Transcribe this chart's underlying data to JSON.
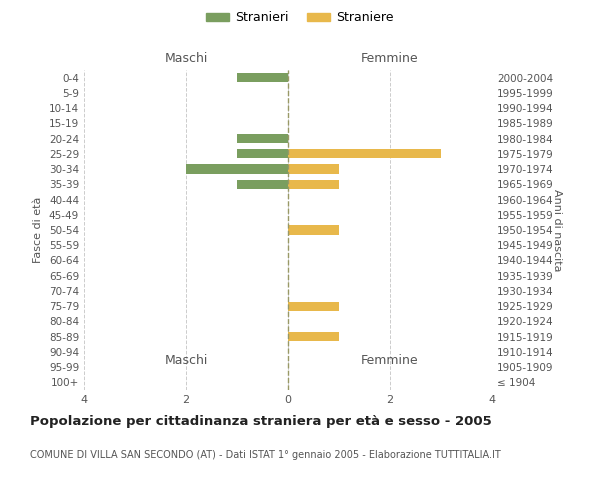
{
  "age_groups": [
    "100+",
    "95-99",
    "90-94",
    "85-89",
    "80-84",
    "75-79",
    "70-74",
    "65-69",
    "60-64",
    "55-59",
    "50-54",
    "45-49",
    "40-44",
    "35-39",
    "30-34",
    "25-29",
    "20-24",
    "15-19",
    "10-14",
    "5-9",
    "0-4"
  ],
  "birth_years": [
    "≤ 1904",
    "1905-1909",
    "1910-1914",
    "1915-1919",
    "1920-1924",
    "1925-1929",
    "1930-1934",
    "1935-1939",
    "1940-1944",
    "1945-1949",
    "1950-1954",
    "1955-1959",
    "1960-1964",
    "1965-1969",
    "1970-1974",
    "1975-1979",
    "1980-1984",
    "1985-1989",
    "1990-1994",
    "1995-1999",
    "2000-2004"
  ],
  "maschi_stranieri": [
    0,
    0,
    0,
    0,
    0,
    0,
    0,
    0,
    0,
    0,
    0,
    0,
    0,
    1,
    2,
    1,
    1,
    0,
    0,
    0,
    1
  ],
  "femmine_straniere": [
    0,
    0,
    0,
    1,
    0,
    1,
    0,
    0,
    0,
    0,
    1,
    0,
    0,
    1,
    1,
    3,
    0,
    0,
    0,
    0,
    0
  ],
  "color_maschi": "#7a9e5f",
  "color_femmine": "#e8b84b",
  "title": "Popolazione per cittadinanza straniera per età e sesso - 2005",
  "subtitle": "COMUNE DI VILLA SAN SECONDO (AT) - Dati ISTAT 1° gennaio 2005 - Elaborazione TUTTITALIA.IT",
  "ylabel_left": "Fasce di età",
  "ylabel_right": "Anni di nascita",
  "xlabel_left": "Maschi",
  "xlabel_right": "Femmine",
  "legend_maschi": "Stranieri",
  "legend_femmine": "Straniere",
  "xlim": 4,
  "background_color": "#ffffff",
  "grid_color": "#cccccc",
  "zeroline_color": "#999966"
}
